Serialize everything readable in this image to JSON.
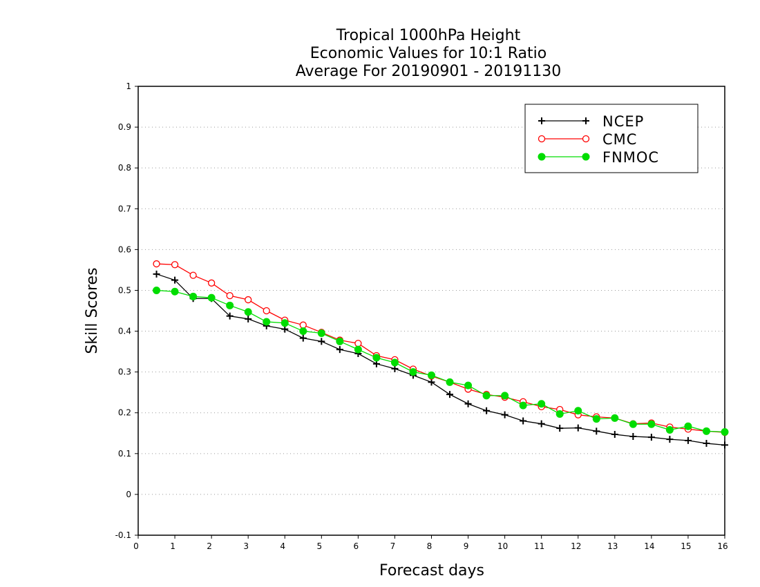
{
  "chart_data": {
    "type": "line",
    "title": [
      "Tropical 1000hPa Height",
      "Economic Values for 10:1 Ratio",
      "Average For 20190901 - 20191130"
    ],
    "xlabel": "Forecast days",
    "ylabel": "Skill Scores",
    "xlim": [
      0,
      16
    ],
    "ylim": [
      -0.1,
      1
    ],
    "xticks": [
      "0",
      "1",
      "2",
      "3",
      "4",
      "5",
      "6",
      "7",
      "8",
      "9",
      "10",
      "11",
      "12",
      "13",
      "14",
      "15",
      "16"
    ],
    "yticks": [
      "-0.1",
      "0",
      "0.1",
      "0.2",
      "0.3",
      "0.4",
      "0.5",
      "0.6",
      "0.7",
      "0.8",
      "0.9",
      "1"
    ],
    "grid": "horizontal dotted",
    "legend_position": "top-right",
    "x": [
      0.5,
      1,
      1.5,
      2,
      2.5,
      3,
      3.5,
      4,
      4.5,
      5,
      5.5,
      6,
      6.5,
      7,
      7.5,
      8,
      8.5,
      9,
      9.5,
      10,
      10.5,
      11,
      11.5,
      12,
      12.5,
      13,
      13.5,
      14,
      14.5,
      15,
      15.5,
      16
    ],
    "series": [
      {
        "name": "NCEP",
        "color": "#000000",
        "marker": "plus",
        "values": [
          0.54,
          0.525,
          0.48,
          0.48,
          0.437,
          0.43,
          0.413,
          0.405,
          0.383,
          0.375,
          0.355,
          0.345,
          0.32,
          0.308,
          0.292,
          0.275,
          0.245,
          0.222,
          0.205,
          0.195,
          0.18,
          0.173,
          0.162,
          0.163,
          0.155,
          0.147,
          0.142,
          0.14,
          0.135,
          0.132,
          0.125,
          0.121
        ]
      },
      {
        "name": "CMC",
        "color": "#ff0000",
        "marker": "open-circle",
        "values": [
          0.565,
          0.563,
          0.537,
          0.518,
          0.487,
          0.477,
          0.45,
          0.427,
          0.415,
          0.397,
          0.378,
          0.37,
          0.34,
          0.33,
          0.307,
          0.29,
          0.275,
          0.258,
          0.245,
          0.238,
          0.227,
          0.215,
          0.208,
          0.195,
          0.19,
          0.187,
          0.173,
          0.175,
          0.165,
          0.16,
          0.155,
          0.152
        ]
      },
      {
        "name": "FNMOC",
        "color": "#00dd00",
        "marker": "filled-circle",
        "values": [
          0.5,
          0.497,
          0.485,
          0.482,
          0.463,
          0.447,
          0.423,
          0.42,
          0.4,
          0.395,
          0.375,
          0.355,
          0.335,
          0.323,
          0.3,
          0.292,
          0.275,
          0.267,
          0.242,
          0.242,
          0.218,
          0.222,
          0.197,
          0.205,
          0.185,
          0.187,
          0.172,
          0.172,
          0.158,
          0.167,
          0.155,
          0.153
        ]
      }
    ]
  }
}
